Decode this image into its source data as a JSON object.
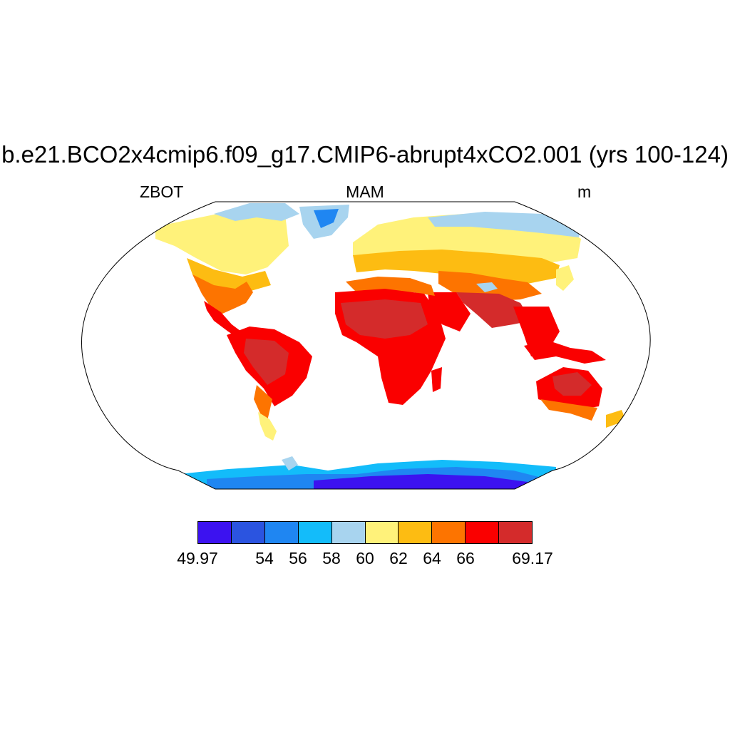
{
  "title": "b.e21.BCO2x4cmip6.f09_g17.CMIP6-abrupt4xCO2.001 (yrs 100-124)",
  "left_string": "ZBOT",
  "center_string": "MAM",
  "right_string": "m",
  "projection": "Robinson",
  "colorbar": {
    "colors": [
      "#3c12f0",
      "#2b54e0",
      "#1f86f2",
      "#13bcfa",
      "#a8d4ef",
      "#fff27a",
      "#fdbc12",
      "#fd7400",
      "#fa0000",
      "#d42b2b"
    ],
    "labels": [
      "49.97",
      "54",
      "56",
      "58",
      "60",
      "62",
      "64",
      "66",
      "69.17"
    ]
  },
  "chart_data": {
    "type": "heatmap",
    "variable": "ZBOT",
    "season": "MAM",
    "units": "m",
    "levels": [
      49.97,
      54,
      56,
      58,
      60,
      62,
      64,
      66,
      69.17
    ]
  }
}
